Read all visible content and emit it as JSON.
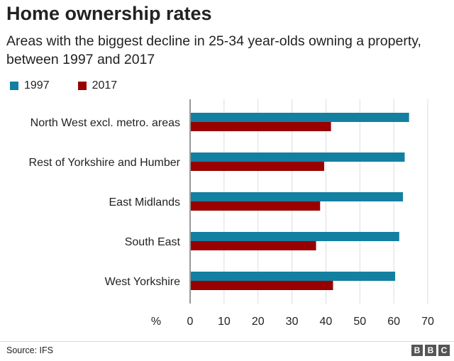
{
  "title": "Home ownership rates",
  "subtitle": "Areas with the biggest decline in 25-34 year-olds owning a property, between 1997 and 2017",
  "source": "Source: IFS",
  "logo": [
    "B",
    "B",
    "C"
  ],
  "colors": {
    "series_1997": "#1380A1",
    "series_2017": "#990000",
    "grid": "#dddddd",
    "axis": "#999999"
  },
  "chart_data": {
    "type": "bar",
    "orientation": "horizontal",
    "categories": [
      "North West excl. metro. areas",
      "Rest of Yorkshire and Humber",
      "East Midlands",
      "South East",
      "West Yorkshire"
    ],
    "series": [
      {
        "name": "1997",
        "values": [
          64.5,
          63.2,
          62.7,
          61.6,
          60.4
        ]
      },
      {
        "name": "2017",
        "values": [
          41.5,
          39.5,
          38.3,
          37.1,
          42.1
        ]
      }
    ],
    "xlim": [
      0,
      70
    ],
    "xticks": [
      0,
      10,
      20,
      30,
      40,
      50,
      60,
      70
    ],
    "xunit": "%",
    "grid": true,
    "legend_position": "top-left"
  }
}
